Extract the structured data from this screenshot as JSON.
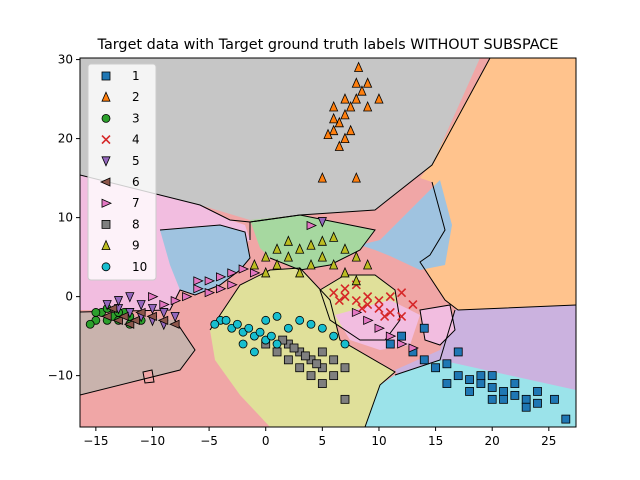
{
  "chart_data": {
    "type": "scatter",
    "title": "Target data with Target ground truth labels WITHOUT SUBSPACE",
    "xlabel": "",
    "ylabel": "",
    "xlim": [
      -16.4,
      27.4
    ],
    "ylim": [
      -16.5,
      30.2
    ],
    "xticks": [
      -15,
      -10,
      -5,
      0,
      5,
      10,
      15,
      20,
      25
    ],
    "yticks": [
      -10,
      0,
      10,
      20,
      30
    ],
    "legend_position": "upper-left",
    "series": [
      {
        "name": "1",
        "marker": "square",
        "color": "#1f77b4",
        "points": [
          [
            13,
            -7
          ],
          [
            14,
            -8
          ],
          [
            15,
            -9
          ],
          [
            16,
            -8.5
          ],
          [
            17,
            -10
          ],
          [
            18,
            -10.5
          ],
          [
            19,
            -11
          ],
          [
            20,
            -11.5
          ],
          [
            21,
            -12
          ],
          [
            22,
            -12.5
          ],
          [
            23,
            -13
          ],
          [
            24,
            -13.5
          ],
          [
            22,
            -11
          ],
          [
            20,
            -13
          ],
          [
            19,
            -10
          ],
          [
            21,
            -13
          ],
          [
            24,
            -12
          ],
          [
            25.5,
            -13
          ],
          [
            26.5,
            -15.5
          ],
          [
            14,
            -4
          ],
          [
            12,
            -5
          ],
          [
            11,
            -6
          ],
          [
            17,
            -7
          ],
          [
            18,
            -12
          ],
          [
            23,
            -14
          ],
          [
            20,
            -10
          ],
          [
            16,
            -11
          ]
        ]
      },
      {
        "name": "2",
        "marker": "triangle-up",
        "color": "#ff7f0e",
        "points": [
          [
            6,
            21
          ],
          [
            6.5,
            22
          ],
          [
            7,
            23
          ],
          [
            7.5,
            24
          ],
          [
            8,
            25
          ],
          [
            8.5,
            26
          ],
          [
            5.5,
            20.5
          ],
          [
            6,
            22.5
          ],
          [
            7,
            25
          ],
          [
            8,
            27
          ],
          [
            8.2,
            29
          ],
          [
            9,
            27
          ],
          [
            10,
            25
          ],
          [
            7.5,
            21
          ],
          [
            6.5,
            19
          ],
          [
            5,
            15
          ],
          [
            8,
            15
          ],
          [
            7,
            20
          ],
          [
            6,
            24
          ],
          [
            9,
            24
          ]
        ]
      },
      {
        "name": "3",
        "marker": "circle",
        "color": "#2ca02c",
        "points": [
          [
            -15,
            -3
          ],
          [
            -14.5,
            -2
          ],
          [
            -14,
            -1.5
          ],
          [
            -13.5,
            -2.5
          ],
          [
            -13,
            -3
          ],
          [
            -12.5,
            -2
          ],
          [
            -12,
            -3.5
          ],
          [
            -15.5,
            -3.5
          ],
          [
            -14,
            -3
          ],
          [
            -13,
            -2
          ],
          [
            -12,
            -2.5
          ],
          [
            -11,
            -3
          ],
          [
            -15,
            -2
          ]
        ]
      },
      {
        "name": "4",
        "marker": "x",
        "color": "#d62728",
        "points": [
          [
            6,
            0.5
          ],
          [
            7,
            0
          ],
          [
            8,
            -0.5
          ],
          [
            9,
            -1
          ],
          [
            10,
            -1.5
          ],
          [
            11,
            -2
          ],
          [
            12,
            -2.5
          ],
          [
            7,
            1
          ],
          [
            8,
            1.5
          ],
          [
            9,
            0
          ],
          [
            10,
            -0.5
          ],
          [
            11,
            0
          ],
          [
            12,
            0.5
          ],
          [
            13,
            -1
          ],
          [
            6.5,
            -0.5
          ],
          [
            8.5,
            -1.5
          ],
          [
            10.5,
            -2.5
          ]
        ]
      },
      {
        "name": "5",
        "marker": "triangle-down",
        "color": "#9467bd",
        "points": [
          [
            -14,
            -1
          ],
          [
            -13,
            -1.5
          ],
          [
            -12,
            -2
          ],
          [
            -11,
            -2.5
          ],
          [
            -10,
            -3
          ],
          [
            -9,
            -3.5
          ],
          [
            -13,
            -0.5
          ],
          [
            -12,
            0
          ],
          [
            -11,
            -1
          ],
          [
            -10,
            -1.5
          ],
          [
            -9,
            -2
          ],
          [
            -8,
            -2.5
          ],
          [
            5,
            9.5
          ]
        ]
      },
      {
        "name": "6",
        "marker": "triangle-left",
        "color": "#8c564b",
        "points": [
          [
            -14,
            -2.5
          ],
          [
            -13,
            -3
          ],
          [
            -12,
            -3.5
          ],
          [
            -11,
            -2
          ],
          [
            -10,
            -2.5
          ],
          [
            -9,
            -3
          ],
          [
            -8,
            -3.5
          ],
          [
            -13.5,
            -1.5
          ],
          [
            -12.5,
            -2.5
          ],
          [
            -11.5,
            -3
          ]
        ]
      },
      {
        "name": "7",
        "marker": "triangle-right",
        "color": "#e377c2",
        "points": [
          [
            -6,
            1
          ],
          [
            -5,
            2
          ],
          [
            -4,
            2.5
          ],
          [
            -3,
            3
          ],
          [
            -2,
            3.5
          ],
          [
            -1,
            3
          ],
          [
            -7,
            0
          ],
          [
            -8,
            -0.5
          ],
          [
            -9,
            -1
          ],
          [
            -10,
            0
          ],
          [
            -5,
            0.5
          ],
          [
            -4,
            1
          ],
          [
            -3,
            1.5
          ],
          [
            -6,
            2
          ],
          [
            4,
            9
          ],
          [
            8,
            -2
          ],
          [
            9,
            -3
          ],
          [
            10,
            -4
          ],
          [
            11,
            -5
          ],
          [
            12,
            -6
          ],
          [
            13,
            -6.5
          ]
        ]
      },
      {
        "name": "8",
        "marker": "square",
        "color": "#7f7f7f",
        "points": [
          [
            2,
            -6
          ],
          [
            3,
            -7
          ],
          [
            4,
            -8
          ],
          [
            5,
            -9
          ],
          [
            6,
            -10
          ],
          [
            1,
            -7
          ],
          [
            2,
            -8
          ],
          [
            3,
            -9
          ],
          [
            4,
            -10
          ],
          [
            5,
            -11
          ],
          [
            6,
            -8
          ],
          [
            7,
            -9
          ],
          [
            1.5,
            -5.5
          ],
          [
            2.5,
            -6.5
          ],
          [
            3.5,
            -7.5
          ],
          [
            4.5,
            -8.5
          ],
          [
            7,
            -13
          ],
          [
            0,
            -6
          ],
          [
            5,
            -7
          ]
        ]
      },
      {
        "name": "9",
        "marker": "triangle-up",
        "color": "#bcbd22",
        "points": [
          [
            0,
            3
          ],
          [
            1,
            4
          ],
          [
            2,
            5
          ],
          [
            3,
            6
          ],
          [
            4,
            6.5
          ],
          [
            5,
            7
          ],
          [
            6,
            7.5
          ],
          [
            7,
            6
          ],
          [
            8,
            5
          ],
          [
            9,
            4
          ],
          [
            -1,
            4
          ],
          [
            0,
            5
          ],
          [
            1,
            6
          ],
          [
            2,
            7
          ],
          [
            3,
            3
          ],
          [
            4,
            4
          ],
          [
            5,
            5
          ],
          [
            6,
            4
          ],
          [
            7,
            3
          ],
          [
            8,
            2
          ]
        ]
      },
      {
        "name": "10",
        "marker": "circle",
        "color": "#17becf",
        "points": [
          [
            -4,
            -3
          ],
          [
            -3,
            -4
          ],
          [
            -2,
            -4.5
          ],
          [
            -1,
            -5
          ],
          [
            0,
            -5.5
          ],
          [
            1,
            -6
          ],
          [
            -4.5,
            -3.5
          ],
          [
            -3.5,
            -3
          ],
          [
            -2.5,
            -3.5
          ],
          [
            -1.5,
            -4
          ],
          [
            -0.5,
            -4.5
          ],
          [
            0.5,
            -5
          ],
          [
            2,
            -4
          ],
          [
            3,
            -3
          ],
          [
            4,
            -3.5
          ],
          [
            5,
            -4
          ],
          [
            -2,
            -6
          ],
          [
            -1,
            -7
          ],
          [
            0,
            -3
          ],
          [
            1,
            -2.5
          ],
          [
            6,
            -5
          ],
          [
            7,
            -6
          ]
        ]
      }
    ]
  }
}
